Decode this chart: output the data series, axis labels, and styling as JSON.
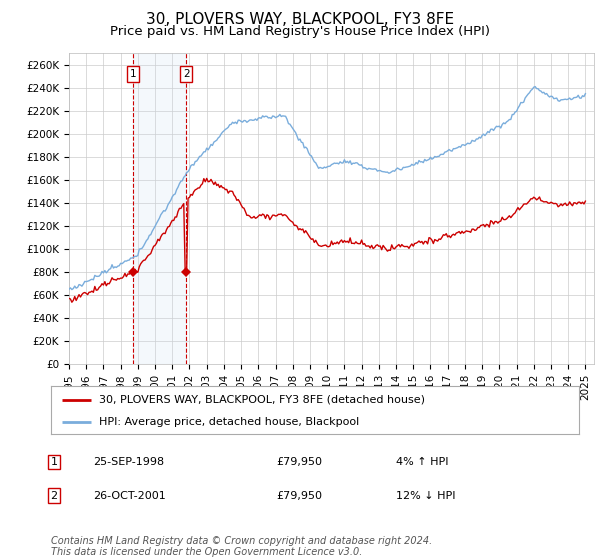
{
  "title": "30, PLOVERS WAY, BLACKPOOL, FY3 8FE",
  "subtitle": "Price paid vs. HM Land Registry's House Price Index (HPI)",
  "title_fontsize": 11,
  "subtitle_fontsize": 9.5,
  "ylabel_ticks": [
    "£0",
    "£20K",
    "£40K",
    "£60K",
    "£80K",
    "£100K",
    "£120K",
    "£140K",
    "£160K",
    "£180K",
    "£200K",
    "£220K",
    "£240K",
    "£260K"
  ],
  "ytick_values": [
    0,
    20000,
    40000,
    60000,
    80000,
    100000,
    120000,
    140000,
    160000,
    180000,
    200000,
    220000,
    240000,
    260000
  ],
  "ylim": [
    0,
    270000
  ],
  "xlim_start": 1995.0,
  "xlim_end": 2025.5,
  "sale1_year": 1998.73,
  "sale1_price": 79950,
  "sale1_label": "1",
  "sale1_date": "25-SEP-1998",
  "sale1_hpi_change": "4% ↑ HPI",
  "sale2_year": 2001.82,
  "sale2_price": 79950,
  "sale2_label": "2",
  "sale2_date": "26-OCT-2001",
  "sale2_hpi_change": "12% ↓ HPI",
  "price_color": "#cc0000",
  "hpi_color": "#7aaddc",
  "marker_color": "#cc0000",
  "shade_color": "#cce0f0",
  "dashed_color": "#cc0000",
  "grid_color": "#cccccc",
  "bg_color": "#ffffff",
  "legend_line1": "30, PLOVERS WAY, BLACKPOOL, FY3 8FE (detached house)",
  "legend_line2": "HPI: Average price, detached house, Blackpool",
  "footer": "Contains HM Land Registry data © Crown copyright and database right 2024.\nThis data is licensed under the Open Government Licence v3.0.",
  "footer_fontsize": 7,
  "axis_fontsize": 7.5,
  "xtick_years": [
    1995,
    1996,
    1997,
    1998,
    1999,
    2000,
    2001,
    2002,
    2003,
    2004,
    2005,
    2006,
    2007,
    2008,
    2009,
    2010,
    2011,
    2012,
    2013,
    2014,
    2015,
    2016,
    2017,
    2018,
    2019,
    2020,
    2021,
    2022,
    2023,
    2024,
    2025
  ]
}
